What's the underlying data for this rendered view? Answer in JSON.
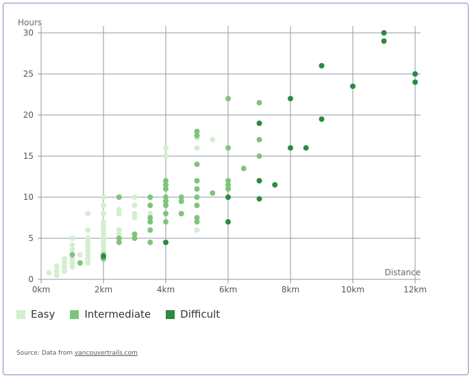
{
  "chart_data": {
    "type": "scatter",
    "title": "",
    "xlabel": "Distance",
    "ylabel": "Hours",
    "xlim": [
      0,
      12
    ],
    "ylim": [
      0,
      30
    ],
    "x_ticks": [
      0,
      2,
      4,
      6,
      8,
      10,
      12
    ],
    "x_tick_labels": [
      "0km",
      "2km",
      "4km",
      "6km",
      "8km",
      "10km",
      "12km"
    ],
    "y_ticks": [
      0,
      5,
      10,
      15,
      20,
      25,
      30
    ],
    "y_tick_labels": [
      "0",
      "5",
      "10",
      "15",
      "20",
      "25",
      "30"
    ],
    "grid": true,
    "legend_position": "bottom-left",
    "series": [
      {
        "name": "Easy",
        "color": "#d4eed0",
        "points": [
          [
            0.25,
            0.8
          ],
          [
            0.5,
            0.5
          ],
          [
            0.5,
            1.0
          ],
          [
            0.5,
            1.6
          ],
          [
            0.75,
            1.0
          ],
          [
            0.75,
            1.5
          ],
          [
            0.75,
            2.0
          ],
          [
            0.75,
            2.5
          ],
          [
            1,
            1.5
          ],
          [
            1,
            2.0
          ],
          [
            1,
            2.5
          ],
          [
            1,
            3.0
          ],
          [
            1,
            3.6
          ],
          [
            1,
            4.2
          ],
          [
            1,
            5.0
          ],
          [
            1.25,
            2.0
          ],
          [
            1.25,
            3.0
          ],
          [
            1.5,
            2.0
          ],
          [
            1.5,
            2.5
          ],
          [
            1.5,
            3.0
          ],
          [
            1.5,
            3.5
          ],
          [
            1.5,
            4.0
          ],
          [
            1.5,
            4.5
          ],
          [
            1.5,
            5.0
          ],
          [
            1.5,
            6.0
          ],
          [
            1.5,
            8.0
          ],
          [
            2,
            3.0
          ],
          [
            2,
            3.5
          ],
          [
            2,
            4.0
          ],
          [
            2,
            4.5
          ],
          [
            2,
            5.0
          ],
          [
            2,
            5.5
          ],
          [
            2,
            6.0
          ],
          [
            2,
            6.5
          ],
          [
            2,
            7.0
          ],
          [
            2,
            8.0
          ],
          [
            2,
            9.0
          ],
          [
            2,
            10.0
          ],
          [
            2.5,
            5.5
          ],
          [
            2.5,
            6.0
          ],
          [
            2.5,
            8.0
          ],
          [
            2.5,
            8.5
          ],
          [
            3,
            5.0
          ],
          [
            3,
            7.5
          ],
          [
            3,
            8.0
          ],
          [
            3,
            9.0
          ],
          [
            3,
            10.0
          ],
          [
            3.5,
            8.0
          ],
          [
            3.5,
            10.0
          ],
          [
            4,
            15.0
          ],
          [
            4,
            16.0
          ],
          [
            5,
            6.0
          ],
          [
            5,
            16.0
          ],
          [
            5,
            17.2
          ],
          [
            5.5,
            17.0
          ]
        ]
      },
      {
        "name": "Intermediate",
        "color": "#7ec47b",
        "points": [
          [
            1,
            3.0
          ],
          [
            1.25,
            2.0
          ],
          [
            2,
            2.5
          ],
          [
            2,
            3.0
          ],
          [
            2.5,
            4.5
          ],
          [
            2.5,
            5.0
          ],
          [
            2.5,
            10.0
          ],
          [
            3,
            5.0
          ],
          [
            3,
            5.5
          ],
          [
            3.5,
            4.5
          ],
          [
            3.5,
            6.0
          ],
          [
            3.5,
            7.0
          ],
          [
            3.5,
            7.5
          ],
          [
            3.5,
            9.0
          ],
          [
            3.5,
            10.0
          ],
          [
            4,
            7.0
          ],
          [
            4,
            8.0
          ],
          [
            4,
            9.0
          ],
          [
            4,
            9.5
          ],
          [
            4,
            10.0
          ],
          [
            4,
            11.0
          ],
          [
            4,
            11.5
          ],
          [
            4,
            12.0
          ],
          [
            4.5,
            8.0
          ],
          [
            4.5,
            9.5
          ],
          [
            4.5,
            10.0
          ],
          [
            5,
            7.0
          ],
          [
            5,
            7.5
          ],
          [
            5,
            9.0
          ],
          [
            5,
            10.0
          ],
          [
            5,
            11.0
          ],
          [
            5,
            12.0
          ],
          [
            5,
            14.0
          ],
          [
            5,
            17.5
          ],
          [
            5,
            18.0
          ],
          [
            5.5,
            10.5
          ],
          [
            6,
            11.0
          ],
          [
            6,
            11.5
          ],
          [
            6,
            12.0
          ],
          [
            6,
            16.0
          ],
          [
            6,
            22.0
          ],
          [
            6.5,
            13.5
          ],
          [
            7,
            15.0
          ],
          [
            7,
            17.0
          ],
          [
            7,
            21.5
          ]
        ]
      },
      {
        "name": "Difficult",
        "color": "#2c8a43",
        "points": [
          [
            2,
            2.8
          ],
          [
            4,
            4.5
          ],
          [
            6,
            7.0
          ],
          [
            6,
            10.0
          ],
          [
            7,
            9.8
          ],
          [
            7,
            12.0
          ],
          [
            7,
            19.0
          ],
          [
            7.5,
            11.5
          ],
          [
            8,
            16.0
          ],
          [
            8,
            22.0
          ],
          [
            8.5,
            16.0
          ],
          [
            9,
            19.5
          ],
          [
            9,
            26.0
          ],
          [
            10,
            23.5
          ],
          [
            11,
            29.0
          ],
          [
            11,
            30.0
          ],
          [
            12,
            24.0
          ],
          [
            12,
            25.0
          ]
        ]
      }
    ]
  },
  "footer": {
    "source_prefix": "Source: Data from ",
    "source_link": "vancouvertrails.com"
  }
}
